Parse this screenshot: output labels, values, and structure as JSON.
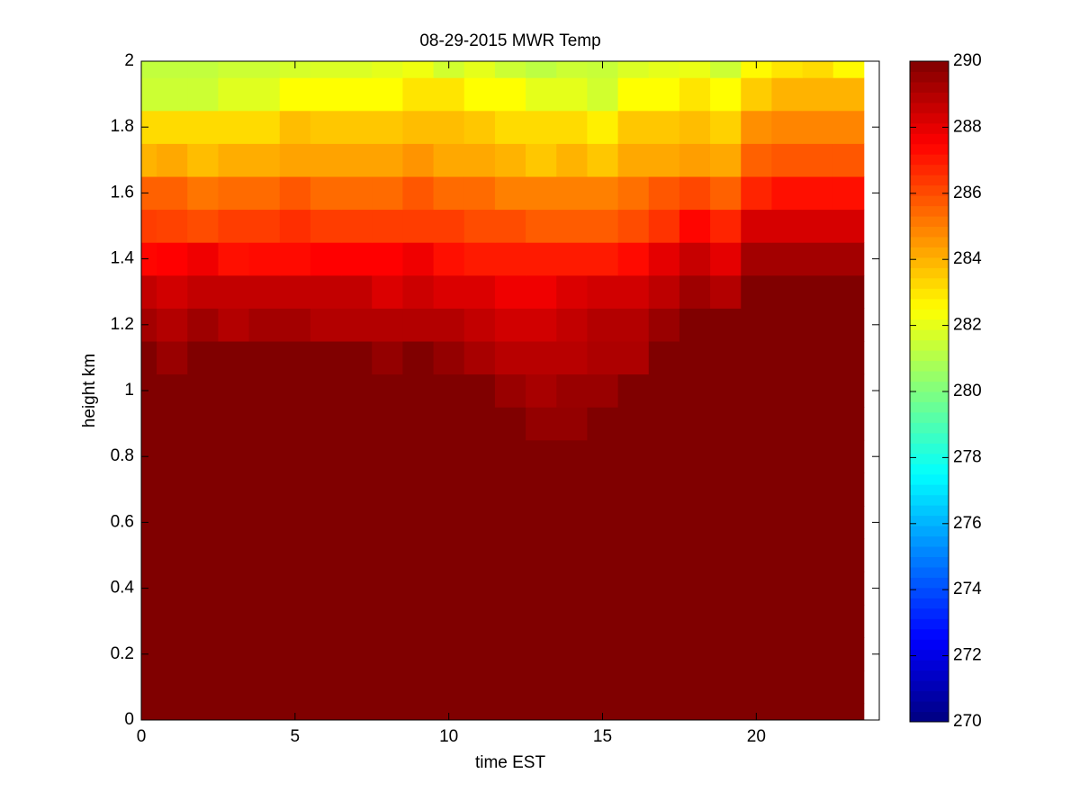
{
  "chart_data": {
    "type": "heatmap",
    "title": "08-29-2015 MWR Temp",
    "x_label": "time EST",
    "y_label": "height km",
    "colormap": "jet",
    "x": [
      0,
      1,
      2,
      3,
      4,
      5,
      6,
      7,
      8,
      9,
      10,
      11,
      12,
      13,
      14,
      15,
      16,
      17,
      18,
      19,
      20,
      21,
      22,
      23
    ],
    "y": [
      0,
      0.1,
      0.2,
      0.3,
      0.4,
      0.5,
      0.6,
      0.7,
      0.8,
      0.9,
      1.0,
      1.1,
      1.2,
      1.3,
      1.4,
      1.5,
      1.6,
      1.7,
      1.8,
      1.9,
      2.0
    ],
    "z": [
      [
        290,
        290,
        290,
        290,
        290,
        290,
        290,
        290,
        290,
        290,
        290,
        290,
        290,
        290,
        290,
        290,
        290,
        290,
        290,
        290,
        290,
        290,
        290,
        290
      ],
      [
        290,
        290,
        290,
        290,
        290,
        290,
        290,
        290,
        290,
        290,
        290,
        290,
        290,
        290,
        290,
        290,
        290,
        290,
        290,
        290,
        290,
        290,
        290,
        290
      ],
      [
        290,
        290,
        290,
        290,
        290,
        290,
        290,
        290,
        290,
        290,
        290,
        290,
        290,
        290,
        290,
        290,
        290,
        290,
        290,
        290,
        290,
        290,
        290,
        290
      ],
      [
        290,
        290,
        290,
        290,
        290,
        290,
        290,
        290,
        290,
        290,
        290,
        290,
        290,
        290,
        290,
        290,
        290,
        290,
        290,
        290,
        290,
        290,
        290,
        290
      ],
      [
        290,
        290,
        290,
        290,
        290,
        290,
        290,
        290,
        290,
        290,
        290,
        290,
        290,
        290,
        290,
        290,
        290,
        290,
        290,
        290,
        290,
        290,
        290,
        290
      ],
      [
        290,
        290,
        290,
        290,
        290,
        290,
        290,
        290,
        290,
        290,
        290,
        290,
        290,
        290,
        290,
        290,
        290,
        290,
        290,
        290,
        290,
        290,
        290,
        290
      ],
      [
        290,
        290,
        290,
        290,
        290,
        290,
        290,
        290,
        290,
        290,
        290,
        290,
        290,
        290,
        290,
        290,
        290,
        290,
        290,
        290,
        290,
        290,
        290,
        290
      ],
      [
        290,
        290,
        290,
        290,
        290,
        290,
        290,
        290,
        290,
        290,
        290,
        290,
        290,
        290,
        290,
        290,
        290,
        290,
        290,
        290,
        290,
        290,
        290,
        290
      ],
      [
        290,
        290,
        290,
        290,
        290,
        290,
        290,
        290,
        290,
        290,
        290,
        290,
        290,
        290,
        290,
        290,
        290,
        290,
        290,
        290,
        290,
        290,
        290,
        290
      ],
      [
        290,
        290,
        290,
        290,
        290,
        290,
        290,
        290,
        290,
        290,
        290,
        290,
        290,
        289.6,
        289.6,
        290,
        290,
        290,
        290,
        290,
        290,
        290,
        290,
        290
      ],
      [
        290,
        290,
        290,
        290,
        290,
        290,
        290,
        290,
        290,
        290,
        290,
        290,
        289.5,
        289.2,
        289.5,
        289.5,
        290,
        290,
        290,
        290,
        290,
        290,
        290,
        290
      ],
      [
        290,
        289.5,
        290,
        290,
        290,
        290,
        290,
        290,
        289.6,
        290,
        289.6,
        289.2,
        288.9,
        288.9,
        288.9,
        289.1,
        289.1,
        290,
        290,
        290,
        290,
        290,
        290,
        290
      ],
      [
        289.3,
        289.0,
        289.4,
        289.0,
        289.3,
        289.3,
        289.0,
        289.0,
        289.0,
        289.0,
        289.0,
        288.7,
        288.4,
        288.4,
        288.7,
        289.0,
        289.0,
        289.5,
        290,
        290,
        290,
        290,
        290,
        290
      ],
      [
        288.7,
        288.4,
        288.7,
        288.7,
        288.7,
        288.7,
        288.7,
        288.7,
        288.2,
        288.5,
        288.2,
        288.2,
        287.8,
        287.8,
        288.2,
        288.4,
        288.4,
        288.8,
        289.4,
        289.0,
        290,
        290,
        290,
        290
      ],
      [
        287.4,
        287.5,
        287.8,
        287.2,
        287.3,
        287.3,
        287.5,
        287.5,
        287.5,
        287.8,
        287.2,
        287.0,
        287.0,
        287.0,
        287.0,
        287.0,
        287.3,
        288.0,
        288.6,
        288.0,
        289.3,
        289.3,
        289.3,
        289.3
      ],
      [
        286.3,
        286.2,
        286.0,
        286.3,
        286.3,
        286.6,
        286.3,
        286.3,
        286.3,
        286.3,
        286.3,
        286.0,
        286.0,
        285.7,
        285.7,
        285.7,
        286.0,
        286.5,
        287.4,
        286.8,
        288.3,
        288.3,
        288.3,
        288.3
      ],
      [
        285.6,
        285.6,
        285.2,
        285.4,
        285.4,
        285.8,
        285.4,
        285.4,
        285.4,
        285.8,
        285.4,
        285.4,
        285.0,
        285.0,
        285.0,
        285.0,
        285.3,
        285.8,
        286.1,
        285.6,
        286.8,
        287.2,
        287.2,
        287.2
      ],
      [
        284.0,
        284.2,
        283.8,
        284.1,
        284.1,
        284.3,
        284.3,
        284.3,
        284.3,
        284.6,
        284.2,
        284.2,
        284.0,
        283.6,
        284.0,
        283.6,
        284.2,
        284.2,
        284.4,
        284.2,
        285.6,
        285.8,
        285.8,
        285.8
      ],
      [
        283.2,
        283.2,
        283.2,
        283.2,
        283.2,
        283.8,
        283.6,
        283.6,
        283.6,
        283.8,
        283.8,
        283.6,
        283.2,
        283.2,
        283.2,
        282.8,
        283.6,
        283.6,
        283.8,
        283.4,
        284.7,
        284.9,
        284.9,
        284.9
      ],
      [
        281.5,
        281.5,
        281.5,
        281.9,
        281.9,
        282.5,
        282.5,
        282.5,
        282.5,
        283.0,
        283.0,
        282.5,
        282.5,
        282.0,
        282.0,
        281.6,
        282.5,
        282.5,
        283.0,
        282.5,
        283.5,
        284.0,
        284.0,
        284.0
      ],
      [
        281.3,
        281.3,
        281.3,
        281.5,
        281.5,
        281.7,
        281.8,
        281.8,
        282.0,
        282.2,
        281.6,
        282.0,
        281.5,
        281.2,
        281.5,
        281.4,
        281.8,
        282.0,
        282.1,
        281.5,
        282.6,
        283.0,
        283.2,
        282.6
      ]
    ],
    "xlim": [
      0,
      24
    ],
    "xticks": [
      0,
      5,
      10,
      15,
      20
    ],
    "ylim": [
      0,
      2
    ],
    "yticks": [
      0,
      0.2,
      0.4,
      0.6,
      0.8,
      1,
      1.2,
      1.4,
      1.6,
      1.8,
      2
    ],
    "clim": [
      270,
      290
    ],
    "cticks": [
      270,
      272,
      274,
      276,
      278,
      280,
      282,
      284,
      286,
      288,
      290
    ]
  }
}
